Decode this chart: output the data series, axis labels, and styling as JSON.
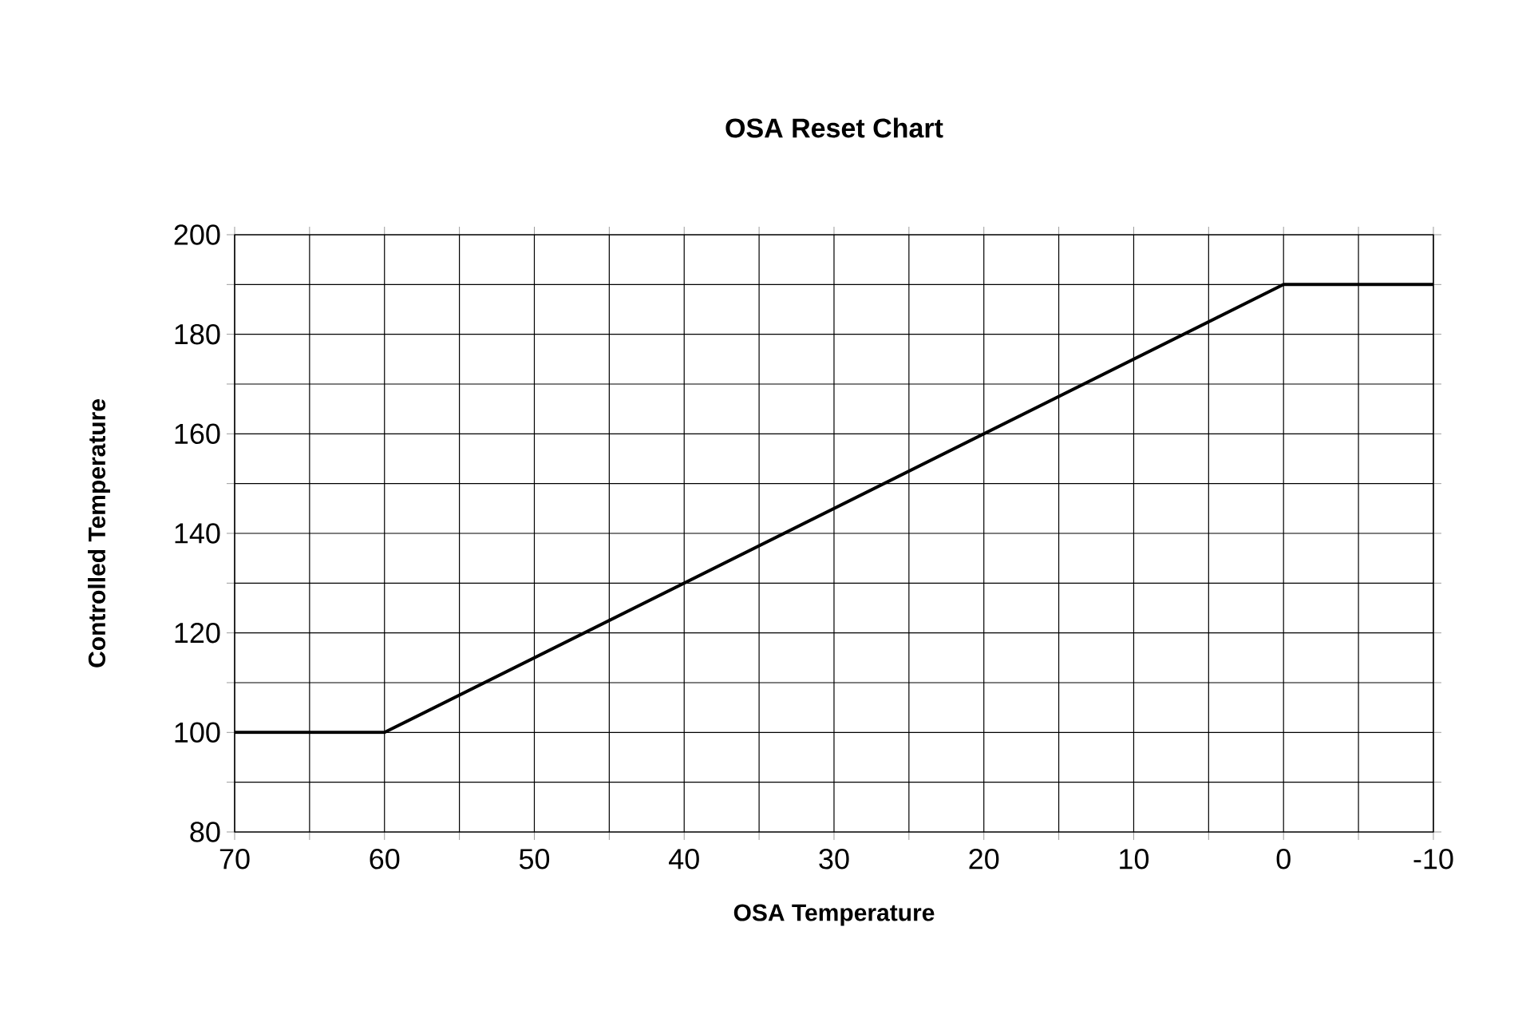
{
  "chart_data": {
    "type": "line",
    "title": "OSA Reset Chart",
    "xlabel": "OSA Temperature",
    "ylabel": "Controlled Temperature",
    "x": [
      70,
      60,
      0,
      -10
    ],
    "series": [
      {
        "color": "#000000",
        "values": [
          100,
          100,
          190,
          190
        ]
      }
    ],
    "xlim": [
      70,
      -10
    ],
    "xticks": [
      70,
      {
        "value": 65,
        "label": null
      },
      60,
      {
        "value": 55,
        "label": null
      },
      50,
      {
        "value": 45,
        "label": null
      },
      40,
      {
        "value": 35,
        "label": null
      },
      30,
      {
        "value": 25,
        "label": null
      },
      20,
      {
        "value": 15,
        "label": null
      },
      10,
      {
        "value": 5,
        "label": null
      },
      0,
      {
        "value": -5,
        "label": null
      },
      -10
    ],
    "ylim": [
      80,
      200
    ],
    "yticks": [
      80,
      {
        "value": 90,
        "label": null
      },
      100,
      {
        "value": 110,
        "label": null
      },
      120,
      {
        "value": 130,
        "label": null
      },
      140,
      {
        "value": 150,
        "label": null
      },
      160,
      {
        "value": 170,
        "label": null
      },
      180,
      {
        "value": 190,
        "label": null
      },
      200
    ],
    "grid": true,
    "marker": "none",
    "line_style": "solid"
  }
}
